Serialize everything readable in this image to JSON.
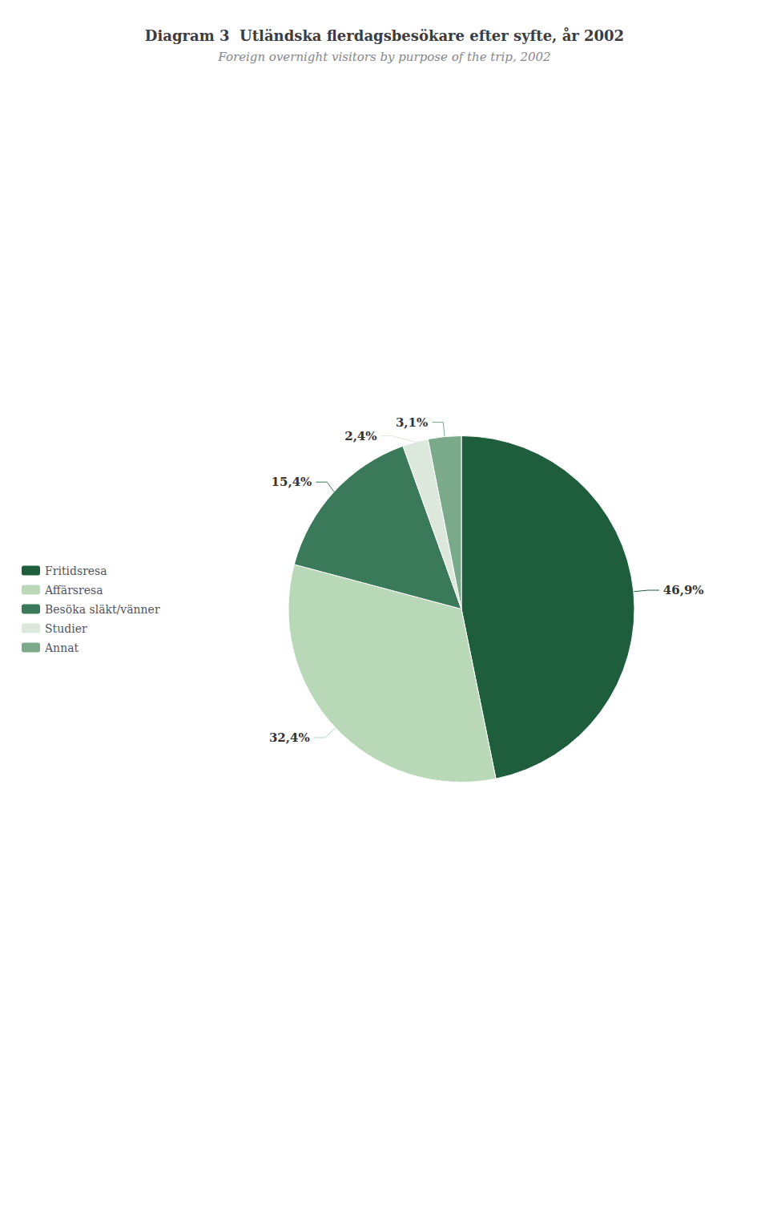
{
  "chart_data": {
    "type": "pie",
    "title": "Diagram 3  Utländska flerdagsbesökare efter syfte, år 2002",
    "subtitle": "Foreign overnight visitors by purpose of the trip, 2002",
    "categories": [
      "Fritidsresa",
      "Affärsresa",
      "Besöka släkt/vänner",
      "Studier",
      "Annat"
    ],
    "values": [
      46.9,
      32.4,
      15.4,
      2.4,
      3.1
    ],
    "value_labels": [
      "46,9%",
      "32,4%",
      "15,4%",
      "2,4%",
      "3,1%"
    ],
    "colors": [
      "#1e5e3c",
      "#b8d8b8",
      "#3a7a5a",
      "#dce8dc",
      "#7aaa8a"
    ],
    "data_labels": true,
    "legend": "left"
  }
}
